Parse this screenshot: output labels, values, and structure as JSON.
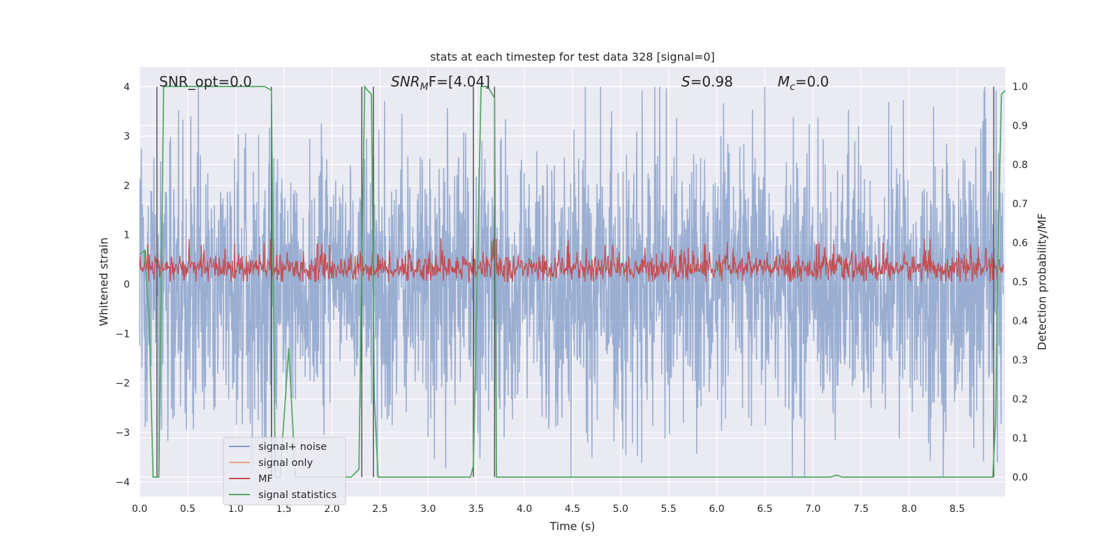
{
  "chart_data": {
    "type": "line",
    "title": "stats at each timestep for test data 328 [signal=0]",
    "xlabel": "Time (s)",
    "ylabel": "Whitened strain",
    "ylabel_right": "Detection probability/MF",
    "xlim": [
      0.0,
      9.0
    ],
    "ylim": [
      -4.3,
      4.4
    ],
    "ylim_right": [
      -0.05,
      1.05
    ],
    "xticks": [
      "0.0",
      "0.5",
      "1.0",
      "1.5",
      "2.0",
      "2.5",
      "3.0",
      "3.5",
      "4.0",
      "4.5",
      "5.0",
      "5.5",
      "6.0",
      "6.5",
      "7.0",
      "7.5",
      "8.0",
      "8.5"
    ],
    "yticks_left": [
      "4",
      "3",
      "2",
      "1",
      "0",
      "−1",
      "−2",
      "−3",
      "−4"
    ],
    "yticks_right": [
      "1.0",
      "0.9",
      "0.8",
      "0.7",
      "0.6",
      "0.5",
      "0.4",
      "0.3",
      "0.2",
      "0.1",
      "0.0"
    ],
    "grid": true,
    "legend_position": "lower-left",
    "annotations": {
      "snr_opt": "SNR_opt=0.0",
      "snr_mf_main": "SNR",
      "snr_mf_sub": "M",
      "snr_mf_rest": "F=[4.04]",
      "s_var": "S",
      "s_val": "=0.98",
      "mc_var": "M",
      "mc_sub": "c",
      "mc_val": "=0.0"
    },
    "series": [
      {
        "name": "signal+ noise",
        "color": "#7f9ac7",
        "axis": "left",
        "description": "noise spanning approximately -3.8 to 4.0"
      },
      {
        "name": "signal only",
        "color": "#e8a37f",
        "axis": "left",
        "values": []
      },
      {
        "name": "MF",
        "color": "#c44e52",
        "axis": "right",
        "description": "fluctuates between approximately 0.5 and 0.6"
      },
      {
        "name": "signal statistics",
        "color": "#55a868",
        "axis": "right",
        "x": [
          0.0,
          0.05,
          0.1,
          0.14,
          0.2,
          0.25,
          0.3,
          0.4,
          1.0,
          1.3,
          1.37,
          1.41,
          1.46,
          1.55,
          1.62,
          1.68,
          1.74,
          2.2,
          2.28,
          2.31,
          2.34,
          2.37,
          2.41,
          2.44,
          2.48,
          2.5,
          2.6,
          2.9,
          3.44,
          3.47,
          3.55,
          3.62,
          3.69,
          3.71,
          3.75,
          3.9,
          7.18,
          7.25,
          7.3,
          8.87,
          8.9,
          8.92,
          8.96,
          9.0
        ],
        "y": [
          0.57,
          0.58,
          0.4,
          0.0,
          0.0,
          1.0,
          1.0,
          1.0,
          1.0,
          1.0,
          0.99,
          0.0,
          0.0,
          0.33,
          0.0,
          0.0,
          0.0,
          0.0,
          0.02,
          0.55,
          1.0,
          0.99,
          0.98,
          0.2,
          0.0,
          0.0,
          0.0,
          0.0,
          0.0,
          0.03,
          1.0,
          1.0,
          0.97,
          0.0,
          0.0,
          0.0,
          0.0,
          0.005,
          0.0,
          0.0,
          0.15,
          0.53,
          0.98,
          0.99
        ]
      }
    ],
    "vertical_lines_x": [
      0.18,
      1.37,
      2.31,
      2.43,
      3.47,
      3.69,
      8.88
    ]
  }
}
